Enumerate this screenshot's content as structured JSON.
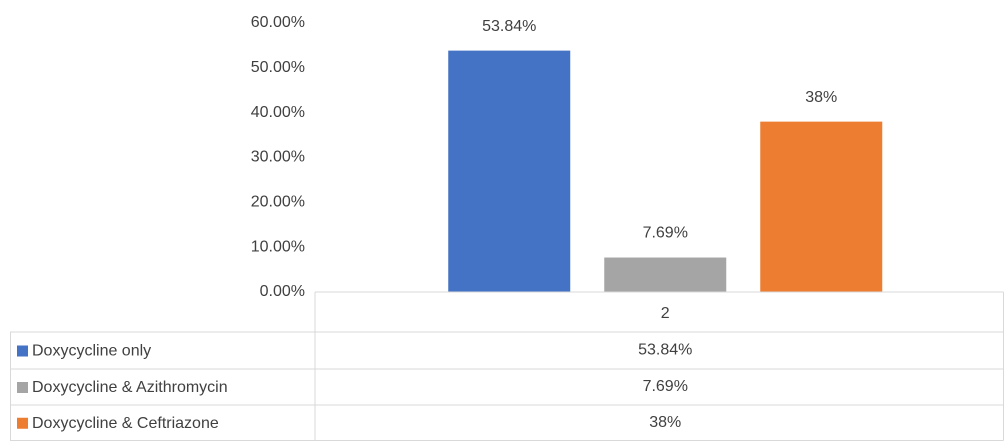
{
  "chart_data": {
    "type": "bar",
    "categories": [
      "2"
    ],
    "series": [
      {
        "name": "Doxycycline only",
        "color": "#4472c4",
        "values": [
          53.84
        ],
        "value_labels": [
          "53.84%"
        ]
      },
      {
        "name": "Doxycycline & Azithromycin",
        "color": "#a5a5a5",
        "values": [
          7.69
        ],
        "value_labels": [
          "7.69%"
        ]
      },
      {
        "name": "Doxycycline & Ceftriazone",
        "color": "#ed7d31",
        "values": [
          38
        ],
        "value_labels": [
          "38%"
        ]
      }
    ],
    "ylim": [
      0,
      60
    ],
    "yticks": [
      {
        "value": 0,
        "label": "0.00%"
      },
      {
        "value": 10,
        "label": "10.00%"
      },
      {
        "value": 20,
        "label": "20.00%"
      },
      {
        "value": 30,
        "label": "30.00%"
      },
      {
        "value": 40,
        "label": "40.00%"
      },
      {
        "value": 50,
        "label": "50.00%"
      },
      {
        "value": 60,
        "label": "60.00%"
      }
    ],
    "grid": false,
    "data_table": true
  }
}
